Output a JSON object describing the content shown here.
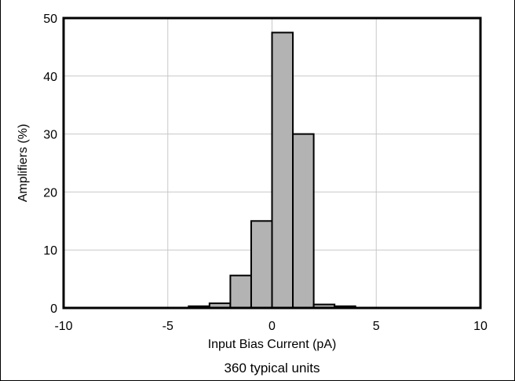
{
  "chart_data": {
    "type": "bar",
    "title": "",
    "xlabel": "Input Bias Current (pA)",
    "ylabel": "Amplifiers (%)",
    "caption": "360 typical units",
    "xlim": [
      -10,
      10
    ],
    "ylim": [
      0,
      50
    ],
    "xticks": [
      -10,
      -5,
      0,
      5,
      10
    ],
    "yticks": [
      0,
      10,
      20,
      30,
      40,
      50
    ],
    "bin_width": 1,
    "bins": [
      {
        "start": -4,
        "value": 0.3
      },
      {
        "start": -3,
        "value": 0.8
      },
      {
        "start": -2,
        "value": 5.6
      },
      {
        "start": -1,
        "value": 15
      },
      {
        "start": 0,
        "value": 47.5
      },
      {
        "start": 1,
        "value": 30
      },
      {
        "start": 2,
        "value": 0.6
      },
      {
        "start": 3,
        "value": 0.3
      }
    ],
    "bar_color": "#b3b3b3",
    "grid": true
  }
}
